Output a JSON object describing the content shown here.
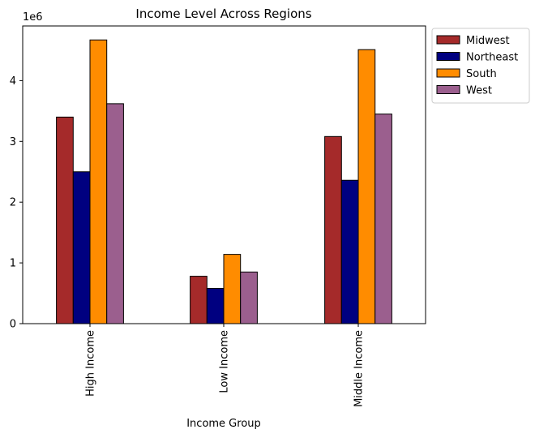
{
  "chart_data": {
    "type": "bar",
    "title": "Income Level Across Regions",
    "xlabel": "Income Group",
    "ylabel": "",
    "y_offset_label": "1e6",
    "categories": [
      "High Income",
      "Low Income",
      "Middle Income"
    ],
    "series": [
      {
        "name": "Midwest",
        "color": "#a52a2a",
        "values": [
          3400000,
          780000,
          3080000
        ]
      },
      {
        "name": "Northeast",
        "color": "#000080",
        "values": [
          2500000,
          580000,
          2360000
        ]
      },
      {
        "name": "South",
        "color": "#ff8c00",
        "values": [
          4670000,
          1140000,
          4510000
        ]
      },
      {
        "name": "West",
        "color": "#9b5f8e",
        "values": [
          3620000,
          850000,
          3450000
        ]
      }
    ],
    "ylim": [
      0,
      4900000
    ],
    "yticks": [
      0,
      1000000,
      2000000,
      3000000,
      4000000
    ],
    "ytick_labels": [
      "0",
      "1",
      "2",
      "3",
      "4"
    ],
    "grid": false,
    "legend_position": "outside-top-right"
  }
}
